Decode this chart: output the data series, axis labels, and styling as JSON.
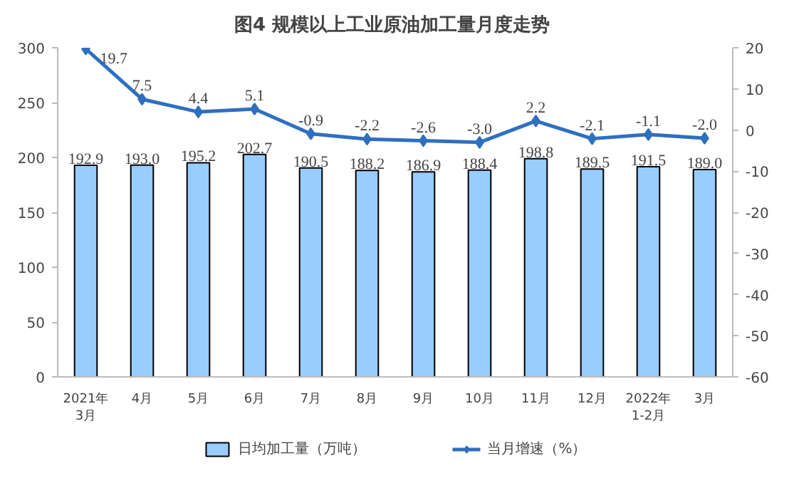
{
  "chart_data": {
    "type": "bar",
    "title": "图4  规模以上工业原油加工量月度走势",
    "categories": [
      "2021年\n3月",
      "4月",
      "5月",
      "6月",
      "7月",
      "8月",
      "9月",
      "10月",
      "11月",
      "12月",
      "2022年\n1-2月",
      "3月"
    ],
    "series": [
      {
        "name": "日均加工量（万吨）",
        "type": "bar",
        "color": "#99ccff",
        "values": [
          192.9,
          193.0,
          195.2,
          202.7,
          190.5,
          188.2,
          186.9,
          188.4,
          198.8,
          189.5,
          191.5,
          189.0
        ],
        "value_labels": [
          "192.9",
          "193.0",
          "195.2",
          "202.7",
          "190.5",
          "188.2",
          "186.9",
          "188.4",
          "198.8",
          "189.5",
          "191.5",
          "189.0"
        ]
      },
      {
        "name": "当月增速（%）",
        "type": "line",
        "axis": "y2",
        "color": "#2e6fc0",
        "marker": "diamond",
        "values": [
          19.7,
          7.5,
          4.4,
          5.1,
          -0.9,
          -2.2,
          -2.6,
          -3.0,
          2.2,
          -2.1,
          -1.1,
          -2.0
        ],
        "value_labels": [
          "19.7",
          "7.5",
          "4.4",
          "5.1",
          "-0.9",
          "-2.2",
          "-2.6",
          "-3.0",
          "2.2",
          "-2.1",
          "-1.1",
          "-2.0"
        ]
      }
    ],
    "ylim": [
      0,
      300
    ],
    "yticks": [
      0,
      50,
      100,
      150,
      200,
      250,
      300
    ],
    "y2lim": [
      -60,
      20
    ],
    "y2ticks": [
      -60,
      -50,
      -40,
      -30,
      -20,
      -10,
      0,
      10,
      20
    ],
    "grid": false,
    "legend": "bottom"
  }
}
